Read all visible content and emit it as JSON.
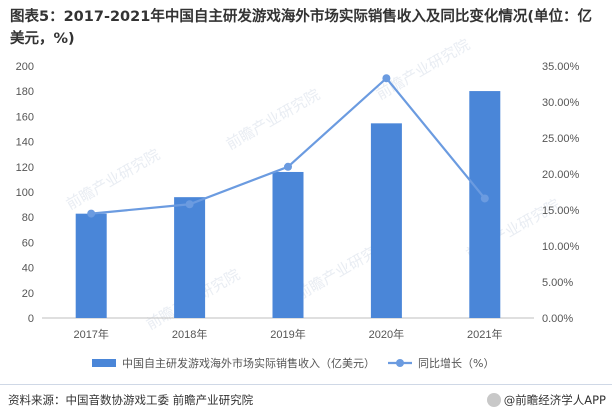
{
  "title": "图表5：2017-2021年中国自主研发游戏海外市场实际销售收入及同比变化情况(单位：亿美元，%)",
  "source": "资料来源：中国音数协游戏工委 前瞻产业研究院",
  "credit": "@前瞻经济学人APP",
  "watermark": "前瞻产业研究院",
  "chart_data": {
    "type": "bar",
    "categories": [
      "2017年",
      "2018年",
      "2019年",
      "2020年",
      "2021年"
    ],
    "series": [
      {
        "name": "中国自主研发游戏海外市场实际销售收入（亿美元）",
        "type": "bar",
        "axis": "left",
        "color": "#4a86d8",
        "values": [
          82.8,
          95.9,
          115.9,
          154.5,
          180.1
        ]
      },
      {
        "name": "同比增长（%）",
        "type": "line",
        "axis": "right",
        "color": "#6b9be0",
        "values": [
          14.5,
          15.8,
          21.0,
          33.3,
          16.6
        ]
      }
    ],
    "y_left": {
      "min": 0,
      "max": 200,
      "ticks": [
        "0",
        "20",
        "40",
        "60",
        "80",
        "100",
        "120",
        "140",
        "160",
        "180",
        "200"
      ]
    },
    "y_right": {
      "min": 0,
      "max": 35,
      "ticks": [
        "0.00%",
        "5.00%",
        "10.00%",
        "15.00%",
        "20.00%",
        "25.00%",
        "30.00%",
        "35.00%"
      ]
    },
    "grid": false,
    "legend_position": "bottom"
  }
}
